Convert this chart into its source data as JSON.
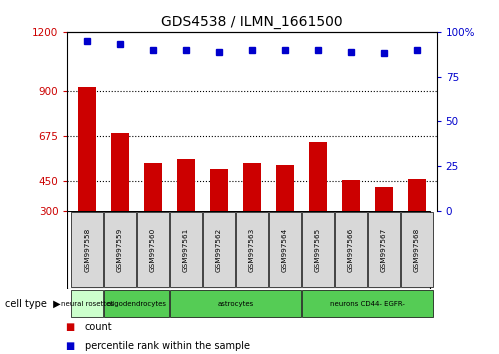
{
  "title": "GDS4538 / ILMN_1661500",
  "samples": [
    "GSM997558",
    "GSM997559",
    "GSM997560",
    "GSM997561",
    "GSM997562",
    "GSM997563",
    "GSM997564",
    "GSM997565",
    "GSM997566",
    "GSM997567",
    "GSM997568"
  ],
  "counts": [
    920,
    690,
    540,
    560,
    510,
    540,
    530,
    645,
    455,
    420,
    460
  ],
  "percentile_ranks": [
    95,
    93,
    90,
    90,
    89,
    90,
    90,
    90,
    89,
    88,
    90
  ],
  "ylim_left": [
    300,
    1200
  ],
  "ylim_right": [
    0,
    100
  ],
  "yticks_left": [
    300,
    450,
    675,
    900,
    1200
  ],
  "yticks_right": [
    0,
    25,
    50,
    75,
    100
  ],
  "bar_color": "#cc0000",
  "dot_color": "#0000cc",
  "bar_width": 0.55,
  "grid_color": "black",
  "background_color": "#ffffff",
  "ylabel_left_color": "#cc0000",
  "ylabel_right_color": "#0000cc",
  "legend_count_color": "#cc0000",
  "legend_pct_color": "#0000cc",
  "sample_area_bg": "#d8d8d8",
  "cell_type_groups": [
    {
      "label": "neural rosettes",
      "start": 0,
      "end": 1,
      "color": "#ccffcc"
    },
    {
      "label": "oligodendrocytes",
      "start": 1,
      "end": 3,
      "color": "#66dd66"
    },
    {
      "label": "astrocytes",
      "start": 3,
      "end": 7,
      "color": "#66dd66"
    },
    {
      "label": "neurons CD44- EGFR-",
      "start": 7,
      "end": 11,
      "color": "#66dd66"
    }
  ]
}
